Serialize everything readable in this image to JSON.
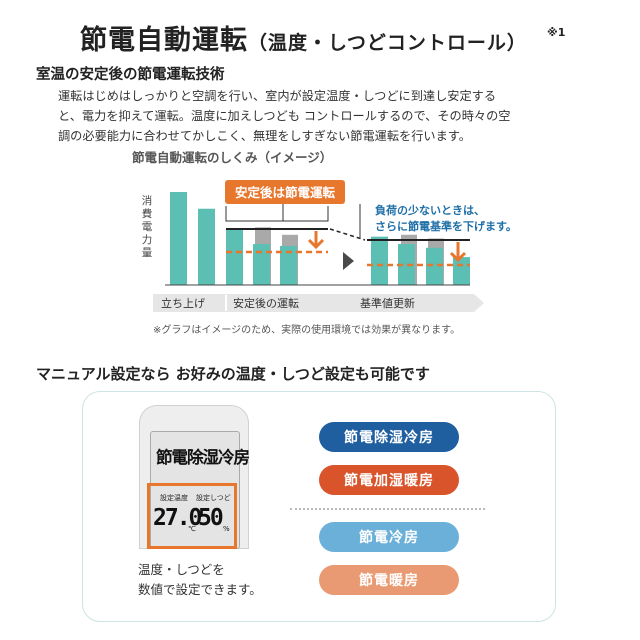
{
  "header": {
    "title": "節電自動運転",
    "title_sub": "（温度・しつどコントロール）",
    "title_note": "※1"
  },
  "section1": {
    "heading": "室温の安定後の節電運転技術",
    "paragraph_lines": [
      "運転はじめはしっかりと空調を行い、室内が設定温度・しつどに到達し安定する",
      "と、電力を抑えて運転。温度に加えしつども コントロールするので、その時々の空",
      "調の必要能力に合わせてかしこく、無理をしすぎない節電運転を行います。"
    ]
  },
  "chart": {
    "caption": "節電自動運転のしくみ（イメージ）",
    "ylabel": "消費電力量",
    "callout_left": "安定後は節電運転",
    "callout_right_lines": [
      "負荷の少ないときは、",
      "さらに節電基準を下げます。"
    ],
    "phases": [
      "立ち上げ",
      "安定後の運転",
      "基準値更新"
    ],
    "note": "※グラフはイメージのため、実際の使用環境では効果が異なります。",
    "colors": {
      "teal": "#5bbfb3",
      "gray": "#a9a9a9",
      "orange": "#e8772e",
      "blue": "#1f6fa8",
      "arrow_bg": "#e6e6e6"
    }
  },
  "chart_data": {
    "type": "bar",
    "title": "節電自動運転のしくみ（イメージ）",
    "ylabel": "消費電力量",
    "phases": [
      "立ち上げ",
      "安定後の運転",
      "基準値更新"
    ],
    "series": [
      {
        "values": [
          1.0,
          0.82,
          0.6,
          0.47,
          0.44,
          0.42,
          0.52,
          0.44,
          0.4,
          0.3
        ]
      },
      {
        "values": [
          null,
          null,
          null,
          0.62,
          0.54,
          null,
          null,
          0.54,
          0.5,
          null
        ]
      }
    ],
    "reference_levels": {
      "before_update": 0.62,
      "after_update": 0.52
    }
  },
  "section2": {
    "heading": "マニュアル設定なら お好みの温度・しつど設定も可能です",
    "remote": {
      "mode": "節電除湿冷房",
      "label_temp": "設定温度",
      "label_hum": "設定しつど",
      "temp_value": "27.0",
      "temp_unit": "℃",
      "hum_value": "50",
      "hum_unit": "%"
    },
    "remote_caption_lines": [
      "温度・しつどを",
      "数値で設定できます。"
    ],
    "modes": [
      {
        "label": "節電除湿冷房",
        "color": "#1f5fa0"
      },
      {
        "label": "節電加湿暖房",
        "color": "#d9542b"
      },
      {
        "label": "節電冷房",
        "color": "#6bb0d8"
      },
      {
        "label": "節電暖房",
        "color": "#ea9a72"
      }
    ]
  }
}
